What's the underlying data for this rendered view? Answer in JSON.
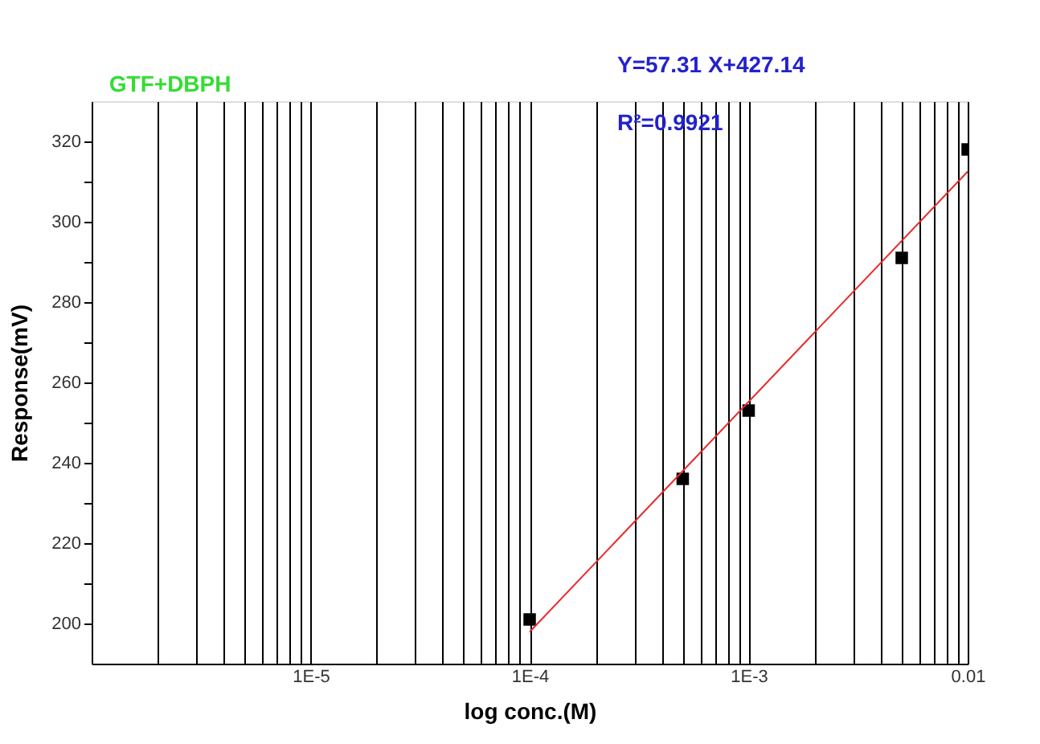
{
  "chart_data": {
    "type": "scatter",
    "xlabel": "log conc.(M)",
    "ylabel": "Response(mV)",
    "log": "x",
    "xlim": [
      1e-06,
      0.01
    ],
    "ylim": [
      190,
      330
    ],
    "xticks": [
      {
        "value": 2e-06,
        "label": null
      },
      {
        "value": 3e-06,
        "label": null
      },
      {
        "value": 4e-06,
        "label": null
      },
      {
        "value": 5e-06,
        "label": null
      },
      {
        "value": 6e-06,
        "label": null
      },
      {
        "value": 7e-06,
        "label": null
      },
      {
        "value": 8e-06,
        "label": null
      },
      {
        "value": 9e-06,
        "label": null
      },
      {
        "value": 1e-05,
        "label": "1E-5"
      },
      {
        "value": 2e-05,
        "label": null
      },
      {
        "value": 3e-05,
        "label": null
      },
      {
        "value": 4e-05,
        "label": null
      },
      {
        "value": 5e-05,
        "label": null
      },
      {
        "value": 6e-05,
        "label": null
      },
      {
        "value": 7e-05,
        "label": null
      },
      {
        "value": 8e-05,
        "label": null
      },
      {
        "value": 9e-05,
        "label": null
      },
      {
        "value": 0.0001,
        "label": "1E-4"
      },
      {
        "value": 0.0002,
        "label": null
      },
      {
        "value": 0.0003,
        "label": null
      },
      {
        "value": 0.0004,
        "label": null
      },
      {
        "value": 0.0005,
        "label": null
      },
      {
        "value": 0.0006,
        "label": null
      },
      {
        "value": 0.0007,
        "label": null
      },
      {
        "value": 0.0008,
        "label": null
      },
      {
        "value": 0.0009,
        "label": null
      },
      {
        "value": 0.001,
        "label": "1E-3"
      },
      {
        "value": 0.002,
        "label": null
      },
      {
        "value": 0.003,
        "label": null
      },
      {
        "value": 0.004,
        "label": null
      },
      {
        "value": 0.005,
        "label": null
      },
      {
        "value": 0.006,
        "label": null
      },
      {
        "value": 0.007,
        "label": null
      },
      {
        "value": 0.008,
        "label": null
      },
      {
        "value": 0.009,
        "label": null
      },
      {
        "value": 0.01,
        "label": "0.01"
      }
    ],
    "yticks": [
      200,
      {
        "value": 210,
        "label": null
      },
      220,
      {
        "value": 230,
        "label": null
      },
      240,
      {
        "value": 250,
        "label": null
      },
      260,
      {
        "value": 270,
        "label": null
      },
      280,
      {
        "value": 290,
        "label": null
      },
      300,
      {
        "value": 310,
        "label": null
      },
      320
    ],
    "grid": "x",
    "series": [
      {
        "color": "#000000",
        "marker": "square",
        "x": [
          0.0001,
          0.0005,
          0.001,
          0.005,
          0.01
        ],
        "values": [
          201,
          236,
          253,
          291,
          318
        ]
      },
      {
        "type": "line",
        "color": "#e8282a",
        "line_style": "solid",
        "marker": "none",
        "x": [
          0.0001,
          0.01
        ],
        "values": [
          197.9,
          312.5
        ]
      }
    ],
    "annotations": [
      "GTF+DBPH",
      "Y=57.31 X+427.14",
      "R²=0.9921"
    ]
  }
}
